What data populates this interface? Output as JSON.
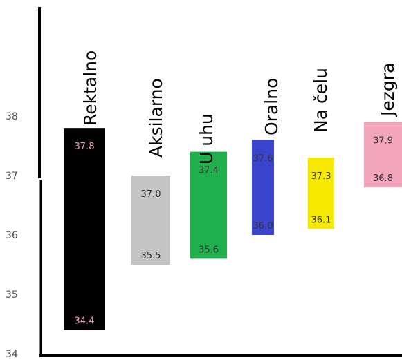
{
  "chart_data": {
    "type": "bar",
    "subtype": "floating-range",
    "title": "",
    "xlabel": "",
    "ylabel": "",
    "ylim": [
      34,
      39
    ],
    "yticks": [
      34,
      35,
      36,
      37,
      38
    ],
    "grid": false,
    "legend": "none",
    "categories": [
      "Rektalno",
      "Aksilarno",
      "U uhu",
      "Oralno",
      "Na čelu",
      "Jezgra"
    ],
    "ranges": [
      {
        "low": 34.4,
        "high": 37.8,
        "color": "#000000",
        "label_color": "#f4a0b4",
        "low_label": "34.4",
        "high_label": "37.8"
      },
      {
        "low": 35.5,
        "high": 37.0,
        "color": "#c4c4c4",
        "label_color": "#333333",
        "low_label": "35.5",
        "high_label": "37.0"
      },
      {
        "low": 35.6,
        "high": 37.4,
        "color": "#1fb04d",
        "label_color": "#333333",
        "low_label": "35.6",
        "high_label": "37.4"
      },
      {
        "low": 36.0,
        "high": 37.6,
        "color": "#3a44cc",
        "label_color": "#333333",
        "low_label": "36.0",
        "high_label": "37.6"
      },
      {
        "low": 36.1,
        "high": 37.3,
        "color": "#f7ea00",
        "label_color": "#333333",
        "low_label": "36.1",
        "high_label": "37.3"
      },
      {
        "low": 36.8,
        "high": 37.9,
        "color": "#f4a5be",
        "label_color": "#333333",
        "low_label": "36.8",
        "high_label": "37.9"
      }
    ]
  }
}
